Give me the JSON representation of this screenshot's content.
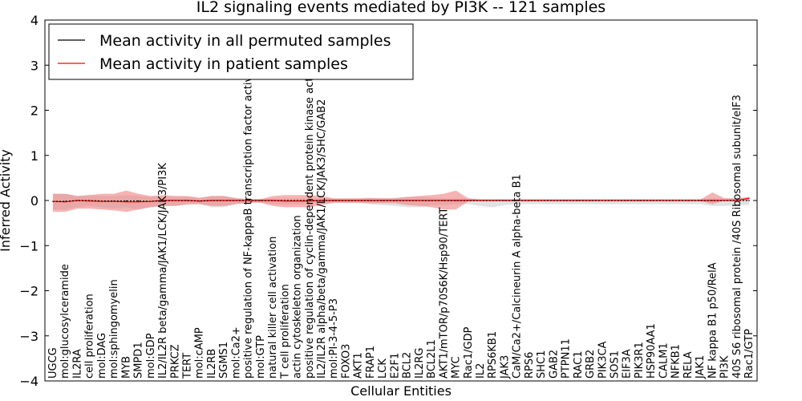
{
  "chart_data": {
    "type": "line",
    "title": "IL2 signaling events mediated by PI3K -- 121 samples",
    "xlabel": "Cellular Entities",
    "ylabel": "Inferred Activity",
    "ylim": [
      -4,
      4
    ],
    "yticks": [
      "−4",
      "−3",
      "−2",
      "−1",
      "0",
      "1",
      "2",
      "3",
      "4"
    ],
    "grid": false,
    "legend_position": "top-left",
    "colors": {
      "permuted": "#000000",
      "patient": "#ff0000",
      "patient_band": "#f08080",
      "permuted_band": "#c8c8c8"
    },
    "categories": [
      "UGCG",
      "mol:glucosylceramide",
      "IL2RA",
      "cell proliferation",
      "mol:DAG",
      "mol:sphingomyelin",
      "MYB",
      "SMPD1",
      "mol:GDP",
      "IL2/IL2R beta/gamma/JAK1/LCK/JAK3/PI3K",
      "PRKCZ",
      "TERT",
      "mol:cAMP",
      "IL2RB",
      "SGMS1",
      "mol:Ca2+",
      "positive regulation of NF-kappaB transcription factor activity",
      "mol:GTP",
      "natural killer cell activation",
      "T cell proliferation",
      "actin cytoskeleton organization",
      "positive regulation of cyclin-dependent protein kinase activity",
      "IL2/IL2R alpha/beta/gamma/JAK1/LCK/JAK3/SHC/GAB2",
      "mol:PI-3-4-5-P3",
      "FOXO3",
      "AKT1",
      "FRAP1",
      "LCK",
      "E2F1",
      "BCL2",
      "IL2RG",
      "BCL2L1",
      "AKT1/mTOR/p70S6K/Hsp90/TERT",
      "MYC",
      "Rac1/GDP",
      "IL2",
      "RPS6KB1",
      "JAK3",
      "CaM/Ca2+/Calcineurin A alpha-beta B1",
      "RPS6",
      "SHC1",
      "GAB2",
      "PTPN11",
      "RAC1",
      "GRB2",
      "PIK3CA",
      "SOS1",
      "EIF3A",
      "PIK3R1",
      "HSP90AA1",
      "CALM1",
      "NFKB1",
      "RELA",
      "JAK1",
      "NF kappa B1 p50/RelA",
      "PI3K",
      "40S S6 ribosomal protein /40S Ribosomal subunit/eIF3",
      "Rac1/GTP"
    ],
    "series": [
      {
        "name": "Mean activity in all permuted samples",
        "values": [
          -0.02,
          -0.02,
          0.0,
          0.0,
          -0.01,
          -0.01,
          -0.01,
          -0.01,
          -0.02,
          0.0,
          0.0,
          0.0,
          -0.01,
          0.0,
          0.0,
          0.0,
          0.0,
          0.0,
          0.0,
          0.0,
          0.0,
          0.0,
          0.0,
          0.0,
          0.0,
          0.0,
          0.0,
          0.0,
          0.0,
          0.0,
          0.0,
          0.0,
          0.0,
          0.0,
          0.0,
          0.0,
          0.0,
          0.0,
          0.0,
          0.0,
          0.0,
          0.0,
          0.0,
          0.0,
          0.0,
          0.0,
          0.0,
          0.0,
          0.0,
          0.0,
          0.0,
          0.0,
          0.0,
          0.0,
          0.0,
          0.0,
          0.0,
          0.0
        ],
        "upper": [
          0.15,
          0.15,
          0.1,
          0.12,
          0.1,
          0.1,
          0.12,
          0.1,
          0.08,
          0.08,
          0.08,
          0.08,
          0.06,
          0.1,
          0.1,
          0.06,
          0.03,
          0.03,
          0.05,
          0.05,
          0.05,
          0.05,
          0.05,
          0.04,
          0.04,
          0.04,
          0.05,
          0.05,
          0.06,
          0.08,
          0.08,
          0.06,
          0.05,
          0.05,
          0.05,
          0.04,
          0.04,
          0.04,
          0.04,
          0.04,
          0.04,
          0.04,
          0.04,
          0.04,
          0.04,
          0.04,
          0.04,
          0.04,
          0.04,
          0.04,
          0.04,
          0.04,
          0.04,
          0.04,
          0.05,
          0.05,
          0.05,
          0.05
        ],
        "lower": [
          -0.2,
          -0.2,
          -0.15,
          -0.12,
          -0.15,
          -0.18,
          -0.15,
          -0.2,
          -0.15,
          -0.12,
          -0.12,
          -0.1,
          -0.08,
          -0.15,
          -0.15,
          -0.08,
          -0.05,
          -0.05,
          -0.08,
          -0.08,
          -0.08,
          -0.08,
          -0.08,
          -0.06,
          -0.06,
          -0.06,
          -0.08,
          -0.1,
          -0.12,
          -0.15,
          -0.15,
          -0.1,
          -0.1,
          -0.08,
          -0.08,
          -0.12,
          -0.15,
          -0.1,
          -0.08,
          -0.08,
          -0.08,
          -0.08,
          -0.08,
          -0.08,
          -0.08,
          -0.08,
          -0.08,
          -0.08,
          -0.08,
          -0.08,
          -0.08,
          -0.08,
          -0.08,
          -0.08,
          -0.12,
          -0.12,
          -0.1,
          -0.1
        ]
      },
      {
        "name": "Mean activity in patient samples",
        "values": [
          -0.02,
          -0.03,
          0.0,
          -0.01,
          -0.02,
          -0.02,
          -0.03,
          -0.03,
          -0.02,
          0.0,
          0.0,
          0.0,
          -0.01,
          0.0,
          0.0,
          0.0,
          0.0,
          0.0,
          0.0,
          -0.01,
          -0.01,
          -0.01,
          0.0,
          0.0,
          0.0,
          0.0,
          0.0,
          0.0,
          0.0,
          0.0,
          0.0,
          0.0,
          0.0,
          0.0,
          0.0,
          0.0,
          0.0,
          0.0,
          0.0,
          0.0,
          0.0,
          0.0,
          0.0,
          0.0,
          0.0,
          0.0,
          0.0,
          0.0,
          0.0,
          0.0,
          0.0,
          0.0,
          0.0,
          0.0,
          0.0,
          0.0,
          0.0,
          0.05
        ],
        "upper": [
          0.15,
          0.15,
          0.1,
          0.12,
          0.15,
          0.15,
          0.22,
          0.15,
          0.1,
          0.12,
          0.1,
          0.1,
          0.06,
          0.1,
          0.1,
          0.05,
          0.03,
          0.03,
          0.1,
          0.12,
          0.12,
          0.12,
          0.1,
          0.05,
          0.05,
          0.05,
          0.06,
          0.05,
          0.05,
          0.08,
          0.1,
          0.12,
          0.15,
          0.22,
          0.05,
          0.02,
          0.02,
          0.02,
          0.02,
          0.02,
          0.02,
          0.02,
          0.02,
          0.02,
          0.02,
          0.02,
          0.02,
          0.02,
          0.02,
          0.02,
          0.02,
          0.02,
          0.02,
          0.02,
          0.18,
          0.05,
          0.05,
          0.08
        ],
        "lower": [
          -0.25,
          -0.25,
          -0.18,
          -0.18,
          -0.2,
          -0.22,
          -0.25,
          -0.2,
          -0.15,
          -0.12,
          -0.12,
          -0.08,
          -0.08,
          -0.12,
          -0.12,
          -0.08,
          -0.05,
          -0.05,
          -0.12,
          -0.15,
          -0.15,
          -0.15,
          -0.1,
          -0.05,
          -0.05,
          -0.05,
          -0.06,
          -0.06,
          -0.06,
          -0.1,
          -0.12,
          -0.15,
          -0.2,
          -0.2,
          -0.02,
          -0.01,
          -0.01,
          -0.01,
          -0.01,
          -0.01,
          -0.01,
          -0.01,
          -0.01,
          -0.01,
          -0.01,
          -0.01,
          -0.01,
          -0.01,
          -0.01,
          -0.01,
          -0.01,
          -0.01,
          -0.01,
          -0.01,
          -0.08,
          0.0,
          0.0,
          0.0
        ]
      }
    ]
  }
}
